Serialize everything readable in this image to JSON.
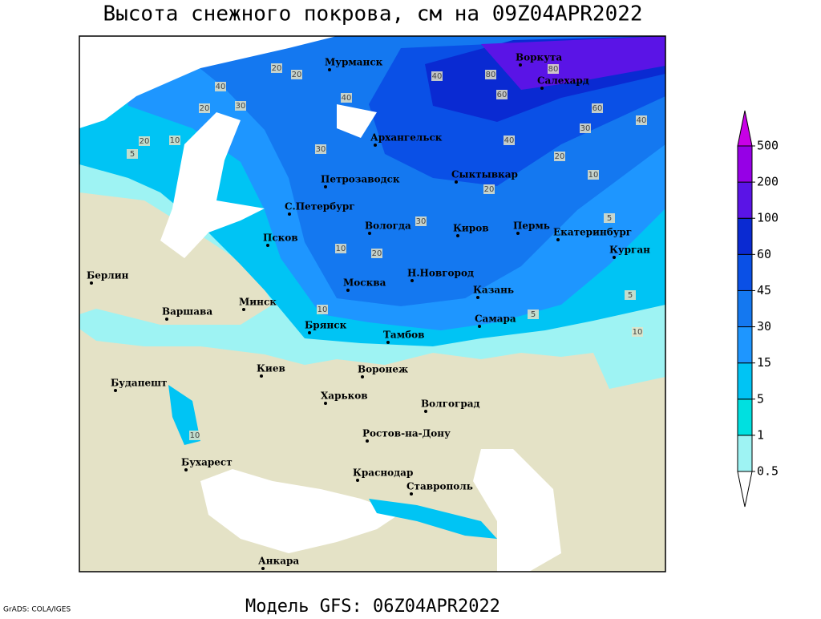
{
  "title": "Высота снежного покрова, см на 09Z04APR2022",
  "footer": "Модель GFS: 06Z04APR2022",
  "credit": "GrADS: COLA/IGES",
  "cities": [
    "Мурманск",
    "Воркута",
    "Салехард",
    "Архангельск",
    "Сыктывкар",
    "Петрозаводск",
    "С.Петербург",
    "Вологда",
    "Киров",
    "Пермь",
    "Екатеринбург",
    "Курган",
    "Псков",
    "Берлин",
    "Н.Новгород",
    "Москва",
    "Казань",
    "Минск",
    "Варшава",
    "Самара",
    "Брянск",
    "Тамбов",
    "Киев",
    "Воронеж",
    "Будапешт",
    "Харьков",
    "Волгоград",
    "Ростов-на-Дону",
    "Бухарест",
    "Краснодар",
    "Ставрополь",
    "Анкара"
  ],
  "contour_labels": [
    20,
    20,
    40,
    40,
    30,
    20,
    10,
    5,
    20,
    30,
    40,
    80,
    80,
    60,
    40,
    60,
    40,
    30,
    20,
    10,
    20,
    30,
    20,
    10,
    5,
    5,
    10,
    10,
    5,
    10
  ],
  "colorbar": {
    "levels": [
      0.5,
      1,
      5,
      15,
      30,
      45,
      60,
      100,
      200,
      500
    ],
    "colors": [
      "#ffffff",
      "#9ef3f3",
      "#00e0e0",
      "#00c4f4",
      "#1e96ff",
      "#1478f0",
      "#0a50e6",
      "#0a2ad2",
      "#5a14e6",
      "#9600e6",
      "#c800e6"
    ]
  }
}
